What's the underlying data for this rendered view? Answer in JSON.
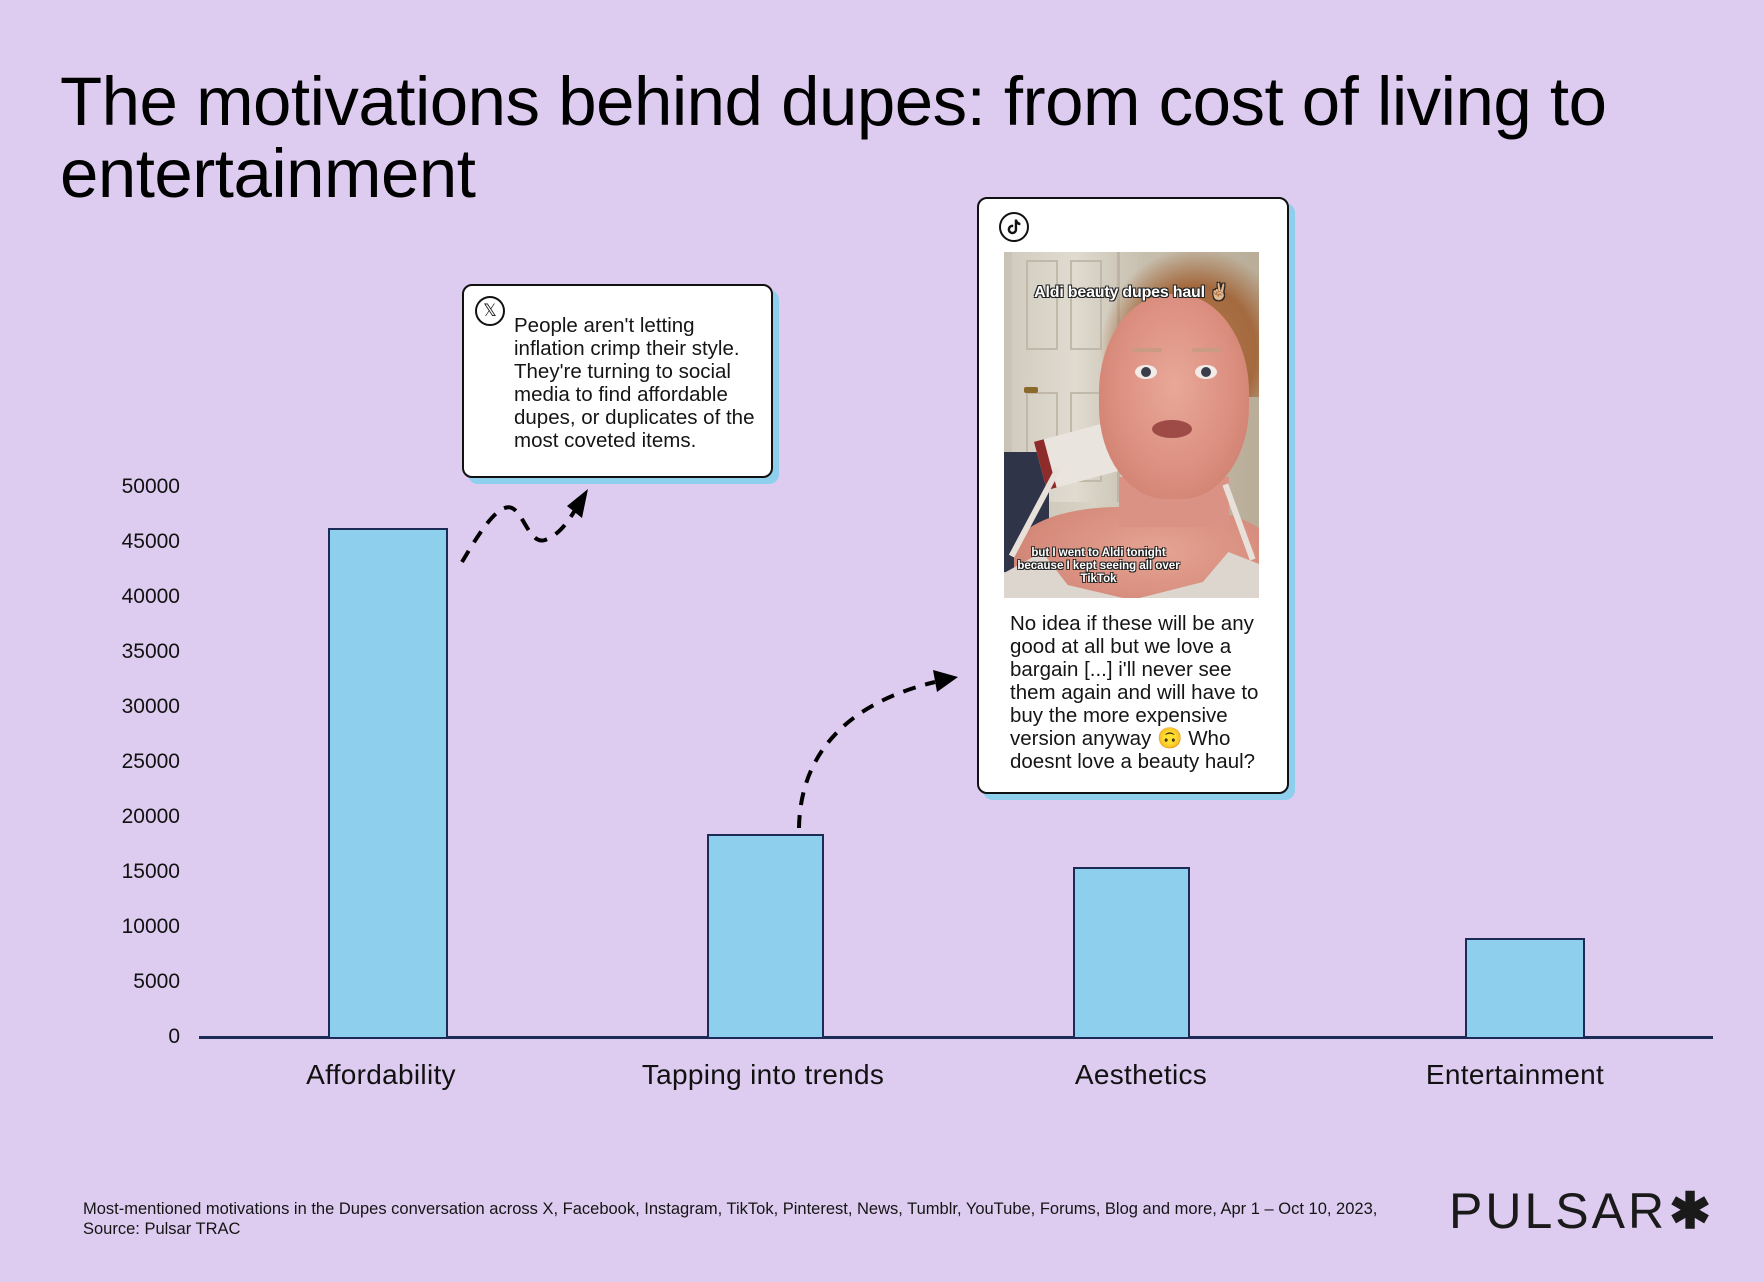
{
  "title": "The motivations behind dupes: from cost of living to entertainment",
  "colors": {
    "background": "#DDCCF0",
    "bar_fill": "#8ECFEE",
    "bar_border": "#1B2B55",
    "card_shadow": "#8ECFEE",
    "text": "#0D0D0D"
  },
  "chart_data": {
    "type": "bar",
    "title": "The motivations behind dupes: from cost of living to entertainment",
    "xlabel": "",
    "ylabel": "",
    "categories": [
      "Affordability",
      "Tapping into trends",
      "Aesthetics",
      "Entertainment"
    ],
    "values": [
      46300,
      18500,
      15500,
      9000
    ],
    "ylim": [
      0,
      50000
    ],
    "yticks": [
      0,
      5000,
      10000,
      15000,
      20000,
      25000,
      30000,
      35000,
      40000,
      45000,
      50000
    ],
    "ytick_labels": [
      "0",
      "5000",
      "10000",
      "15000",
      "20000",
      "25000",
      "30000",
      "35000",
      "40000",
      "45000",
      "50000"
    ],
    "grid": false,
    "legend": null,
    "annotations": [
      {
        "target_category": "Affordability",
        "platform": "X",
        "text": "People aren't letting inflation crimp their style. They're turning to social media to find affordable dupes, or duplicates of the most coveted items."
      },
      {
        "target_category": "Tapping into trends",
        "platform": "TikTok",
        "text": "No idea if these will be any good at all but we love a bargain [...] i'll never see them again and will have to buy the more expensive version anyway 🙃 Who doesnt love a beauty haul?"
      }
    ]
  },
  "cards": {
    "x_post": {
      "platform_icon": "x-logo-icon",
      "platform_glyph": "𝕏",
      "lines": [
        "People aren't letting",
        "inflation crimp their style.",
        "They're turning to social",
        "media to find affordable",
        "dupes, or duplicates of the",
        "most coveted items."
      ]
    },
    "tiktok_post": {
      "platform_icon": "tiktok-logo-icon",
      "platform_glyph": "♪",
      "video_caption_top": "Aldi beauty dupes haul ✌🏼",
      "video_caption_bottom": "but I went to Aldi tonight because I kept seeing all over TikTok",
      "lines": [
        "No idea if these will be any",
        "good at all but we love a",
        "bargain [...] i'll never see",
        "them again and will have to",
        "buy the more expensive",
        "version anyway 🙃 Who",
        "doesnt love a beauty haul?"
      ]
    }
  },
  "footnote": "Most-mentioned motivations in the Dupes conversation across X, Facebook, Instagram, TikTok, Pinterest, News, Tumblr, YouTube, Forums, Blog and more, Apr 1 – Oct 10, 2023, Source: Pulsar TRAC",
  "logo": {
    "text": "PULSAR",
    "mark": "✱"
  }
}
